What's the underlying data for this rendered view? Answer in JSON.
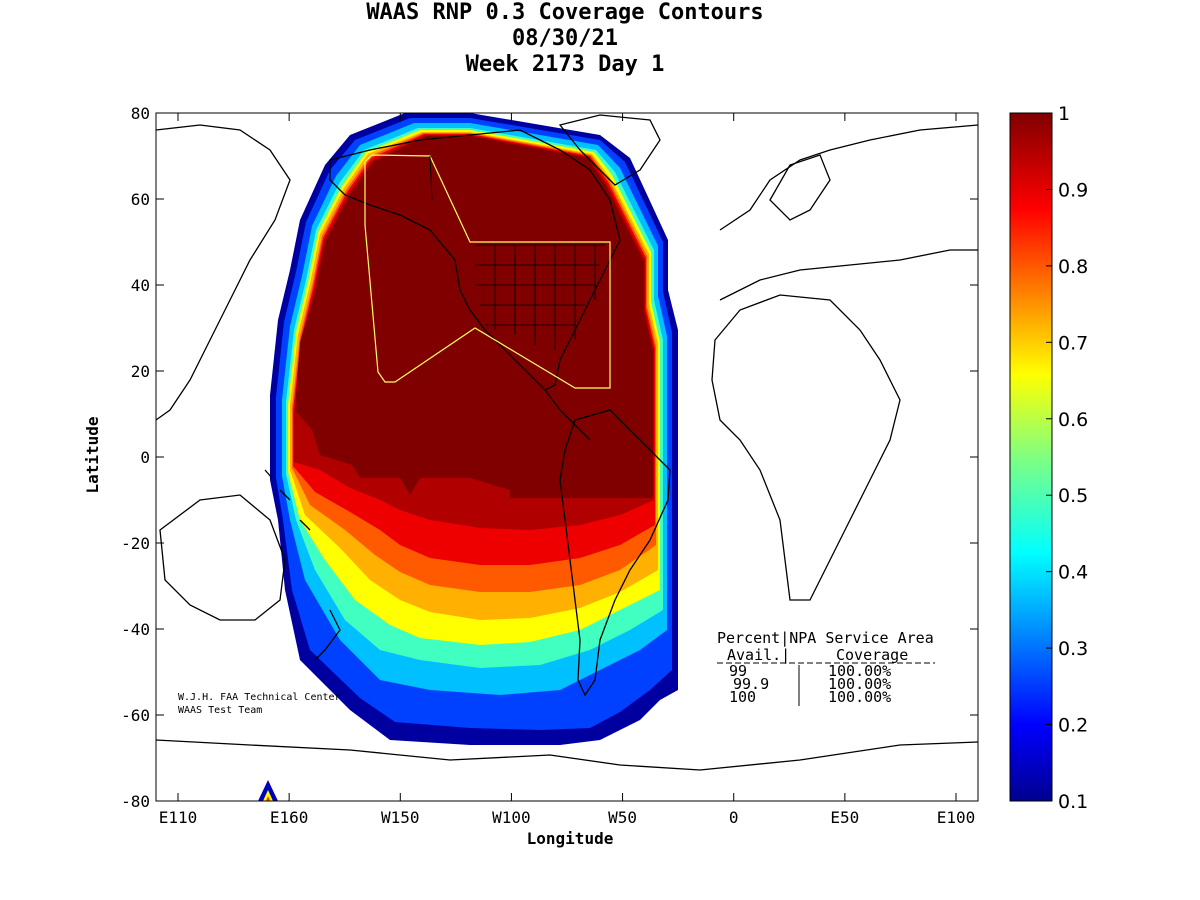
{
  "title": {
    "line1": "WAAS RNP 0.3 Coverage Contours",
    "line2": "08/30/21",
    "line3": "Week 2173 Day 1"
  },
  "axes": {
    "xlabel": "Longitude",
    "ylabel": "Latitude",
    "x_ticks": [
      "E110",
      "E160",
      "W150",
      "W100",
      "W50",
      "0",
      "E50",
      "E100"
    ],
    "y_ticks": [
      "80",
      "60",
      "40",
      "20",
      "0",
      "-20",
      "-40",
      "-60",
      "-80"
    ]
  },
  "colorbar": {
    "ticks": [
      "1",
      "0.9",
      "0.8",
      "0.7",
      "0.6",
      "0.5",
      "0.4",
      "0.3",
      "0.2",
      "0.1"
    ],
    "range": [
      0.1,
      1
    ]
  },
  "credit": {
    "line1": "W.J.H. FAA Technical Center",
    "line2": "WAAS Test Team"
  },
  "table": {
    "header1": "Percent|NPA Service Area",
    "header2a": "Avail.|",
    "header2b": "Coverage",
    "rows": [
      {
        "avail": "99",
        "coverage": "100.00%"
      },
      {
        "avail": "99.9",
        "coverage": "100.00%"
      },
      {
        "avail": "100",
        "coverage": "100.00%"
      }
    ]
  },
  "chart_data": {
    "type": "heatmap",
    "title": "WAAS RNP 0.3 Coverage Contours",
    "xlabel": "Longitude",
    "ylabel": "Latitude",
    "ylim": [
      -80,
      80
    ],
    "grid": false,
    "colormap": "jet",
    "colors": {
      "max": "#800000",
      "min": "#00008f"
    }
  }
}
